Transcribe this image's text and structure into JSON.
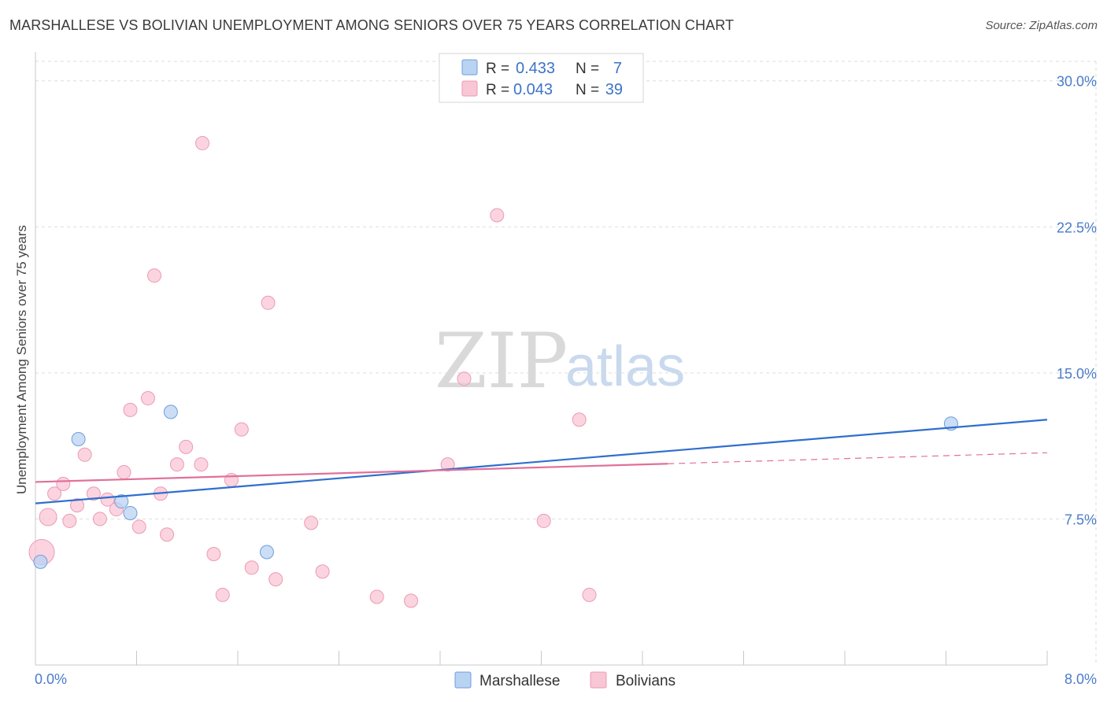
{
  "title": "MARSHALLESE VS BOLIVIAN UNEMPLOYMENT AMONG SENIORS OVER 75 YEARS CORRELATION CHART",
  "source": "Source: ZipAtlas.com",
  "watermark": {
    "zip": "ZIP",
    "atlas": "atlas"
  },
  "legend": {
    "r_label": "R =",
    "n_label": "N =",
    "rows": [
      {
        "name": "Marshallese",
        "r": "0.433",
        "n": "7"
      },
      {
        "name": "Bolivians",
        "r": "0.043",
        "n": "39"
      }
    ]
  },
  "colors": {
    "marshallese_fill": "#b9d3f3",
    "marshallese_stroke": "#6f9ed9",
    "marshallese_line": "#2f6fcd",
    "bolivians_fill": "#f9c6d6",
    "bolivians_stroke": "#eb9bb5",
    "bolivians_line": "#e0709a",
    "grid": "#dddddd",
    "tick_text": "#4a7cc9"
  },
  "chart_data": {
    "type": "scatter",
    "title": "MARSHALLESE VS BOLIVIAN UNEMPLOYMENT AMONG SENIORS OVER 75 YEARS CORRELATION CHART",
    "xlabel": "",
    "ylabel": "Unemployment Among Seniors over 75 years",
    "xlim": [
      0,
      8
    ],
    "ylim": [
      0,
      31
    ],
    "x_tick_labels": [
      "0.0%",
      "8.0%"
    ],
    "y_ticks": [
      7.5,
      15.0,
      22.5,
      30.0
    ],
    "y_tick_labels": [
      "7.5%",
      "15.0%",
      "22.5%",
      "30.0%"
    ],
    "grid": true,
    "legend_position": "top-center",
    "series": [
      {
        "name": "Marshallese",
        "points": [
          [
            0.04,
            5.3
          ],
          [
            0.34,
            11.6
          ],
          [
            0.68,
            8.4
          ],
          [
            0.75,
            7.8
          ],
          [
            1.07,
            13.0
          ],
          [
            1.83,
            5.8
          ],
          [
            7.24,
            12.4
          ]
        ],
        "trend": {
          "x": [
            0.0,
            8.0
          ],
          "y": [
            8.3,
            12.6
          ],
          "dashed_from": null
        }
      },
      {
        "name": "Bolivians",
        "points": [
          [
            0.05,
            5.8
          ],
          [
            0.1,
            7.6
          ],
          [
            0.15,
            8.8
          ],
          [
            0.22,
            9.3
          ],
          [
            0.27,
            7.4
          ],
          [
            0.33,
            8.2
          ],
          [
            0.39,
            10.8
          ],
          [
            0.46,
            8.8
          ],
          [
            0.51,
            7.5
          ],
          [
            0.57,
            8.5
          ],
          [
            0.64,
            8.0
          ],
          [
            0.7,
            9.9
          ],
          [
            0.75,
            13.1
          ],
          [
            0.82,
            7.1
          ],
          [
            0.89,
            13.7
          ],
          [
            0.94,
            20.0
          ],
          [
            0.99,
            8.8
          ],
          [
            1.04,
            6.7
          ],
          [
            1.12,
            10.3
          ],
          [
            1.19,
            11.2
          ],
          [
            1.31,
            10.3
          ],
          [
            1.32,
            26.8
          ],
          [
            1.41,
            5.7
          ],
          [
            1.48,
            3.6
          ],
          [
            1.55,
            9.5
          ],
          [
            1.63,
            12.1
          ],
          [
            1.71,
            5.0
          ],
          [
            1.84,
            18.6
          ],
          [
            1.9,
            4.4
          ],
          [
            2.18,
            7.3
          ],
          [
            2.27,
            4.8
          ],
          [
            2.7,
            3.5
          ],
          [
            2.97,
            3.3
          ],
          [
            3.26,
            10.3
          ],
          [
            3.39,
            14.7
          ],
          [
            3.65,
            23.1
          ],
          [
            4.02,
            7.4
          ],
          [
            4.3,
            12.6
          ],
          [
            4.38,
            3.6
          ]
        ],
        "trend": {
          "x": [
            0.0,
            8.0
          ],
          "y": [
            9.4,
            10.9
          ],
          "dashed_from": 5.0
        }
      }
    ]
  }
}
